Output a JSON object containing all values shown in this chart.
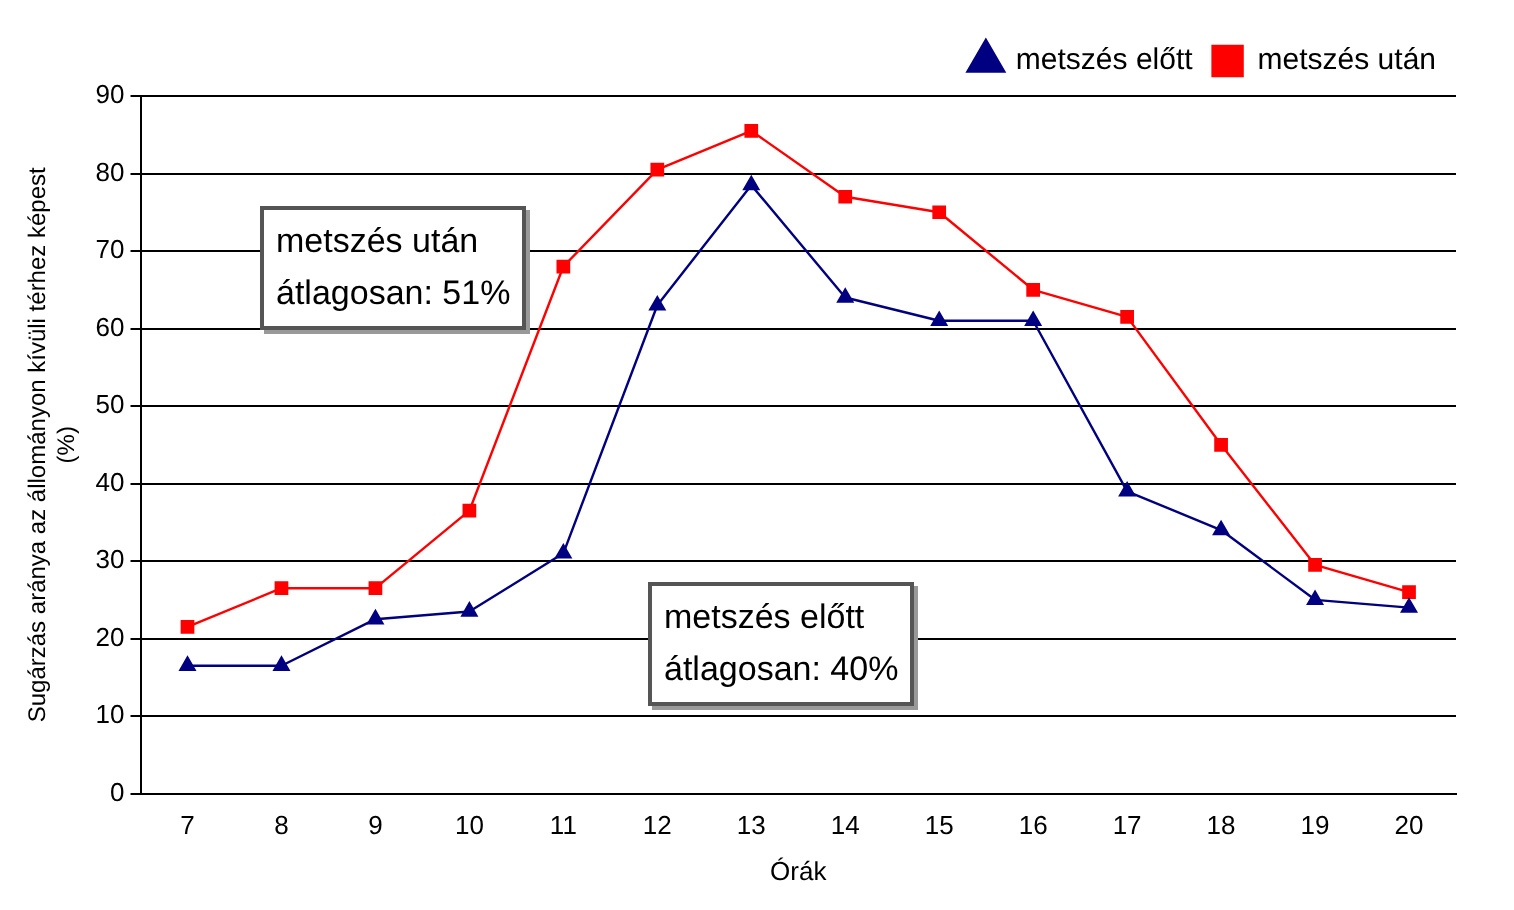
{
  "chart_data": {
    "type": "line",
    "xlabel": "Órák",
    "ylabel": "Sugárzás aránya az állományon kívüli térhez képest\n(%)",
    "categories": [
      "7",
      "8",
      "9",
      "10",
      "11",
      "12",
      "13",
      "14",
      "15",
      "16",
      "17",
      "18",
      "19",
      "20"
    ],
    "series": [
      {
        "name": "metszés előtt",
        "color": "#000080",
        "marker": "triangle",
        "values": [
          16.5,
          16.5,
          22.5,
          23.5,
          31,
          63,
          78.5,
          64,
          61,
          61,
          39,
          34,
          25,
          24
        ]
      },
      {
        "name": "metszés után",
        "color": "#ff0000",
        "marker": "square",
        "values": [
          21.5,
          26.5,
          26.5,
          36.5,
          68,
          80.5,
          85.5,
          77,
          75,
          65,
          61.5,
          45,
          29.5,
          26
        ]
      }
    ],
    "ylim": [
      0,
      90
    ],
    "yticks": [
      0,
      10,
      20,
      30,
      40,
      50,
      60,
      70,
      80,
      90
    ],
    "grid": "y",
    "legend": "top right",
    "annotations": [
      "metszés után\nátlagosan: 51%",
      "metszés előtt\nátlagosan: 40%"
    ]
  }
}
